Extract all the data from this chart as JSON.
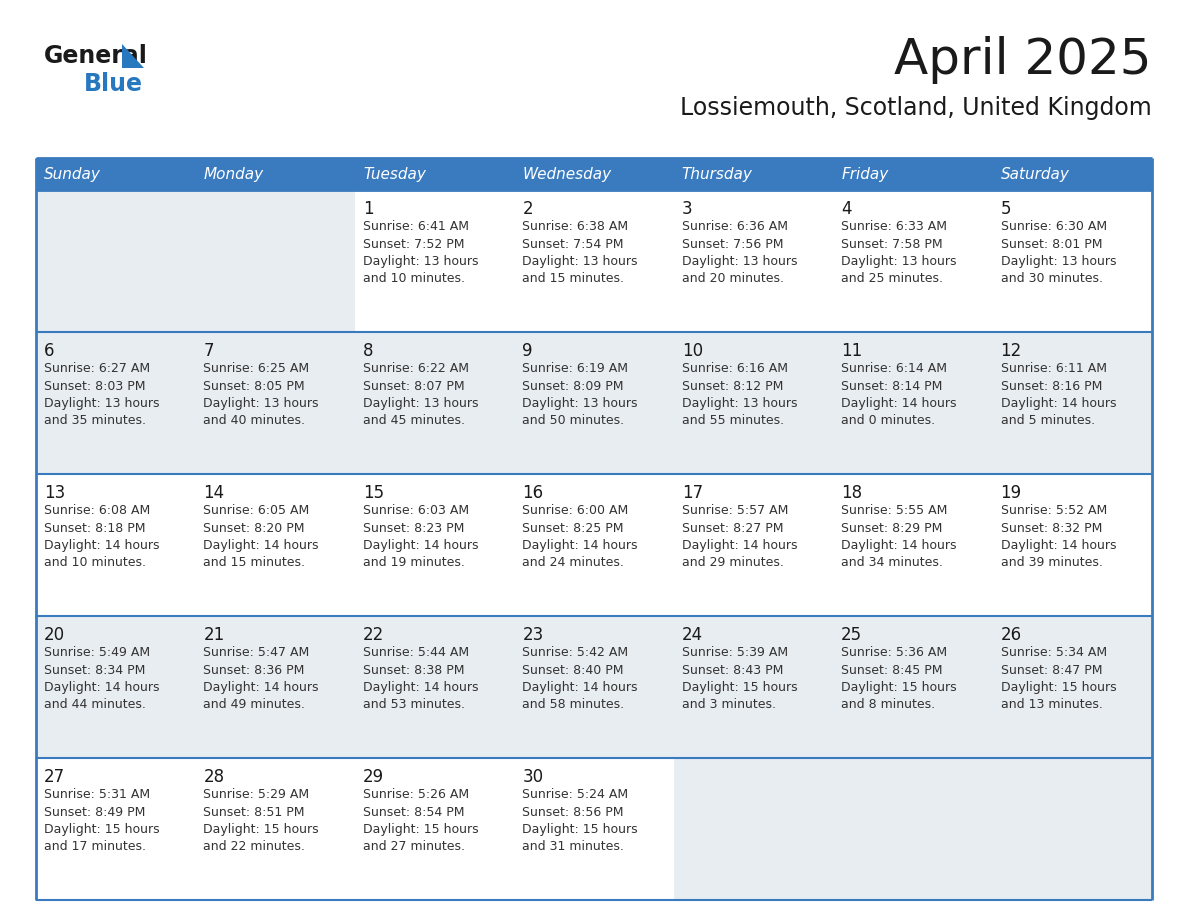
{
  "title": "April 2025",
  "subtitle": "Lossiemouth, Scotland, United Kingdom",
  "header_bg_color": "#3a7bbf",
  "header_text_color": "#ffffff",
  "day_names": [
    "Sunday",
    "Monday",
    "Tuesday",
    "Wednesday",
    "Thursday",
    "Friday",
    "Saturday"
  ],
  "title_color": "#1a1a1a",
  "subtitle_color": "#1a1a1a",
  "cell_bg_white": "#ffffff",
  "cell_bg_gray": "#e8edf2",
  "border_color": "#3a7bbf",
  "day_number_color": "#1a1a1a",
  "cell_text_color": "#333333",
  "logo_text_color": "#1a1a1a",
  "logo_blue_color": "#2878c0",
  "calendar": [
    [
      {
        "day": null,
        "sunrise": null,
        "sunset": null,
        "daylight_line1": null,
        "daylight_line2": null
      },
      {
        "day": null,
        "sunrise": null,
        "sunset": null,
        "daylight_line1": null,
        "daylight_line2": null
      },
      {
        "day": "1",
        "sunrise": "6:41 AM",
        "sunset": "7:52 PM",
        "daylight_line1": "Daylight: 13 hours",
        "daylight_line2": "and 10 minutes."
      },
      {
        "day": "2",
        "sunrise": "6:38 AM",
        "sunset": "7:54 PM",
        "daylight_line1": "Daylight: 13 hours",
        "daylight_line2": "and 15 minutes."
      },
      {
        "day": "3",
        "sunrise": "6:36 AM",
        "sunset": "7:56 PM",
        "daylight_line1": "Daylight: 13 hours",
        "daylight_line2": "and 20 minutes."
      },
      {
        "day": "4",
        "sunrise": "6:33 AM",
        "sunset": "7:58 PM",
        "daylight_line1": "Daylight: 13 hours",
        "daylight_line2": "and 25 minutes."
      },
      {
        "day": "5",
        "sunrise": "6:30 AM",
        "sunset": "8:01 PM",
        "daylight_line1": "Daylight: 13 hours",
        "daylight_line2": "and 30 minutes."
      }
    ],
    [
      {
        "day": "6",
        "sunrise": "6:27 AM",
        "sunset": "8:03 PM",
        "daylight_line1": "Daylight: 13 hours",
        "daylight_line2": "and 35 minutes."
      },
      {
        "day": "7",
        "sunrise": "6:25 AM",
        "sunset": "8:05 PM",
        "daylight_line1": "Daylight: 13 hours",
        "daylight_line2": "and 40 minutes."
      },
      {
        "day": "8",
        "sunrise": "6:22 AM",
        "sunset": "8:07 PM",
        "daylight_line1": "Daylight: 13 hours",
        "daylight_line2": "and 45 minutes."
      },
      {
        "day": "9",
        "sunrise": "6:19 AM",
        "sunset": "8:09 PM",
        "daylight_line1": "Daylight: 13 hours",
        "daylight_line2": "and 50 minutes."
      },
      {
        "day": "10",
        "sunrise": "6:16 AM",
        "sunset": "8:12 PM",
        "daylight_line1": "Daylight: 13 hours",
        "daylight_line2": "and 55 minutes."
      },
      {
        "day": "11",
        "sunrise": "6:14 AM",
        "sunset": "8:14 PM",
        "daylight_line1": "Daylight: 14 hours",
        "daylight_line2": "and 0 minutes."
      },
      {
        "day": "12",
        "sunrise": "6:11 AM",
        "sunset": "8:16 PM",
        "daylight_line1": "Daylight: 14 hours",
        "daylight_line2": "and 5 minutes."
      }
    ],
    [
      {
        "day": "13",
        "sunrise": "6:08 AM",
        "sunset": "8:18 PM",
        "daylight_line1": "Daylight: 14 hours",
        "daylight_line2": "and 10 minutes."
      },
      {
        "day": "14",
        "sunrise": "6:05 AM",
        "sunset": "8:20 PM",
        "daylight_line1": "Daylight: 14 hours",
        "daylight_line2": "and 15 minutes."
      },
      {
        "day": "15",
        "sunrise": "6:03 AM",
        "sunset": "8:23 PM",
        "daylight_line1": "Daylight: 14 hours",
        "daylight_line2": "and 19 minutes."
      },
      {
        "day": "16",
        "sunrise": "6:00 AM",
        "sunset": "8:25 PM",
        "daylight_line1": "Daylight: 14 hours",
        "daylight_line2": "and 24 minutes."
      },
      {
        "day": "17",
        "sunrise": "5:57 AM",
        "sunset": "8:27 PM",
        "daylight_line1": "Daylight: 14 hours",
        "daylight_line2": "and 29 minutes."
      },
      {
        "day": "18",
        "sunrise": "5:55 AM",
        "sunset": "8:29 PM",
        "daylight_line1": "Daylight: 14 hours",
        "daylight_line2": "and 34 minutes."
      },
      {
        "day": "19",
        "sunrise": "5:52 AM",
        "sunset": "8:32 PM",
        "daylight_line1": "Daylight: 14 hours",
        "daylight_line2": "and 39 minutes."
      }
    ],
    [
      {
        "day": "20",
        "sunrise": "5:49 AM",
        "sunset": "8:34 PM",
        "daylight_line1": "Daylight: 14 hours",
        "daylight_line2": "and 44 minutes."
      },
      {
        "day": "21",
        "sunrise": "5:47 AM",
        "sunset": "8:36 PM",
        "daylight_line1": "Daylight: 14 hours",
        "daylight_line2": "and 49 minutes."
      },
      {
        "day": "22",
        "sunrise": "5:44 AM",
        "sunset": "8:38 PM",
        "daylight_line1": "Daylight: 14 hours",
        "daylight_line2": "and 53 minutes."
      },
      {
        "day": "23",
        "sunrise": "5:42 AM",
        "sunset": "8:40 PM",
        "daylight_line1": "Daylight: 14 hours",
        "daylight_line2": "and 58 minutes."
      },
      {
        "day": "24",
        "sunrise": "5:39 AM",
        "sunset": "8:43 PM",
        "daylight_line1": "Daylight: 15 hours",
        "daylight_line2": "and 3 minutes."
      },
      {
        "day": "25",
        "sunrise": "5:36 AM",
        "sunset": "8:45 PM",
        "daylight_line1": "Daylight: 15 hours",
        "daylight_line2": "and 8 minutes."
      },
      {
        "day": "26",
        "sunrise": "5:34 AM",
        "sunset": "8:47 PM",
        "daylight_line1": "Daylight: 15 hours",
        "daylight_line2": "and 13 minutes."
      }
    ],
    [
      {
        "day": "27",
        "sunrise": "5:31 AM",
        "sunset": "8:49 PM",
        "daylight_line1": "Daylight: 15 hours",
        "daylight_line2": "and 17 minutes."
      },
      {
        "day": "28",
        "sunrise": "5:29 AM",
        "sunset": "8:51 PM",
        "daylight_line1": "Daylight: 15 hours",
        "daylight_line2": "and 22 minutes."
      },
      {
        "day": "29",
        "sunrise": "5:26 AM",
        "sunset": "8:54 PM",
        "daylight_line1": "Daylight: 15 hours",
        "daylight_line2": "and 27 minutes."
      },
      {
        "day": "30",
        "sunrise": "5:24 AM",
        "sunset": "8:56 PM",
        "daylight_line1": "Daylight: 15 hours",
        "daylight_line2": "and 31 minutes."
      },
      {
        "day": null,
        "sunrise": null,
        "sunset": null,
        "daylight_line1": null,
        "daylight_line2": null
      },
      {
        "day": null,
        "sunrise": null,
        "sunset": null,
        "daylight_line1": null,
        "daylight_line2": null
      },
      {
        "day": null,
        "sunrise": null,
        "sunset": null,
        "daylight_line1": null,
        "daylight_line2": null
      }
    ]
  ]
}
